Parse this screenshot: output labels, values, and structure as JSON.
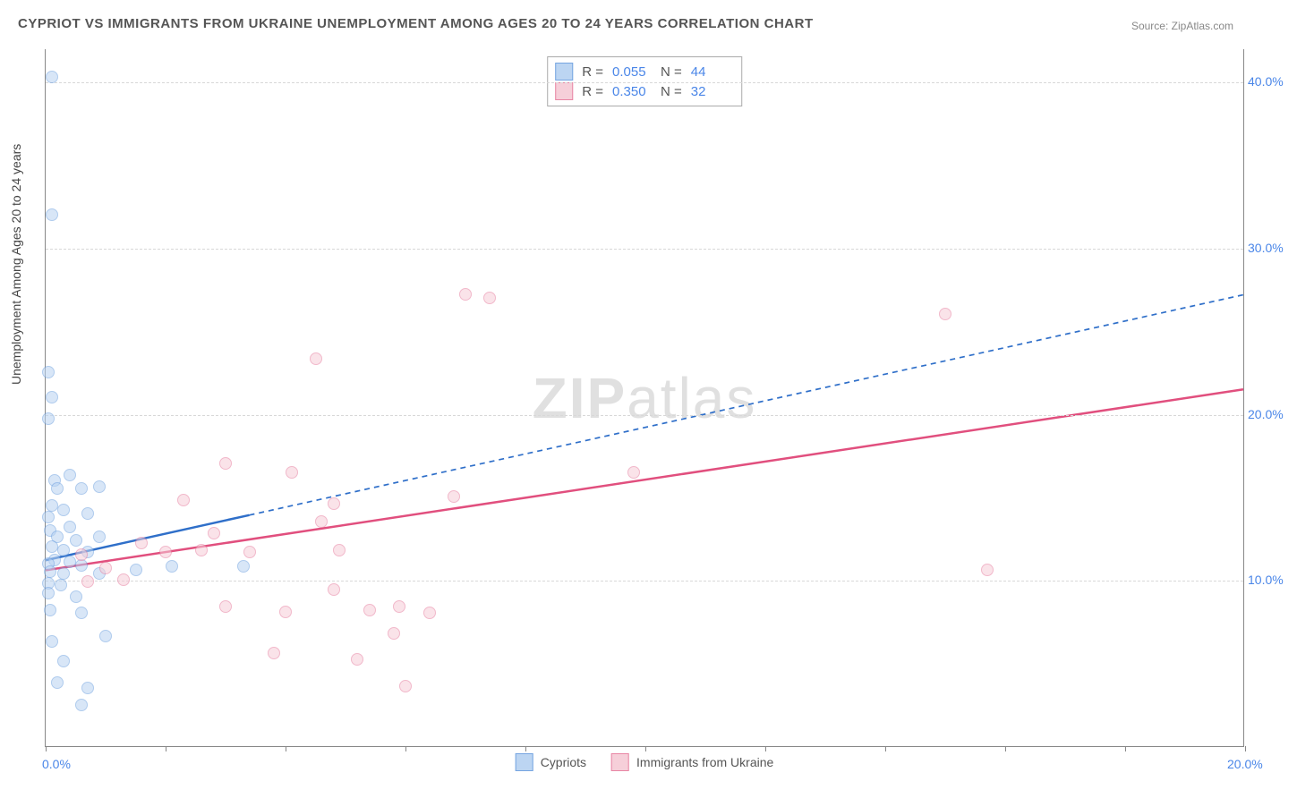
{
  "title": "CYPRIOT VS IMMIGRANTS FROM UKRAINE UNEMPLOYMENT AMONG AGES 20 TO 24 YEARS CORRELATION CHART",
  "source": "Source: ZipAtlas.com",
  "watermark_a": "ZIP",
  "watermark_b": "atlas",
  "chart": {
    "type": "scatter-with-regression",
    "ylabel": "Unemployment Among Ages 20 to 24 years",
    "xlim": [
      0,
      20
    ],
    "ylim": [
      0,
      42
    ],
    "xtick_positions": [
      0,
      2,
      4,
      6,
      8,
      10,
      12,
      14,
      16,
      18,
      20
    ],
    "xtick_labels": {
      "0": "0.0%",
      "20": "20.0%"
    },
    "ytick_positions": [
      10,
      20,
      30,
      40
    ],
    "ytick_labels": {
      "10": "10.0%",
      "20": "20.0%",
      "30": "30.0%",
      "40": "40.0%"
    },
    "grid_h_positions": [
      10,
      20,
      30,
      40
    ],
    "grid_color": "#d8d8d8",
    "background_color": "#ffffff",
    "border_color": "#888888",
    "tick_label_color": "#4a86e8",
    "axis_label_color": "#444444",
    "title_color": "#555555",
    "title_fontsize": 15,
    "label_fontsize": 14,
    "tick_fontsize": 14,
    "point_radius": 7,
    "point_opacity": 0.55,
    "series": [
      {
        "name": "Cypriots",
        "color_fill": "#b9d3f2",
        "color_stroke": "#6fa1e0",
        "r_value": "0.055",
        "n_value": "44",
        "trend": {
          "x1": 0,
          "y1": 11.2,
          "x2": 20,
          "y2": 27.2,
          "solid_until_x": 3.4,
          "stroke": "#2f6fc9",
          "width": 2.5,
          "dash": "6,5"
        },
        "points": [
          [
            0.1,
            40.3
          ],
          [
            0.1,
            32.0
          ],
          [
            0.05,
            22.5
          ],
          [
            0.1,
            21.0
          ],
          [
            0.05,
            19.7
          ],
          [
            0.15,
            16.0
          ],
          [
            0.4,
            16.3
          ],
          [
            0.2,
            15.5
          ],
          [
            0.6,
            15.5
          ],
          [
            0.9,
            15.6
          ],
          [
            0.1,
            14.5
          ],
          [
            0.05,
            13.8
          ],
          [
            0.3,
            14.2
          ],
          [
            0.7,
            14.0
          ],
          [
            0.08,
            13.0
          ],
          [
            0.4,
            13.2
          ],
          [
            0.2,
            12.6
          ],
          [
            0.5,
            12.4
          ],
          [
            0.9,
            12.6
          ],
          [
            0.1,
            12.0
          ],
          [
            0.3,
            11.8
          ],
          [
            0.7,
            11.7
          ],
          [
            0.15,
            11.2
          ],
          [
            0.05,
            11.0
          ],
          [
            0.4,
            11.1
          ],
          [
            0.6,
            10.9
          ],
          [
            0.08,
            10.5
          ],
          [
            0.3,
            10.4
          ],
          [
            0.9,
            10.4
          ],
          [
            1.5,
            10.6
          ],
          [
            2.1,
            10.8
          ],
          [
            3.3,
            10.8
          ],
          [
            0.05,
            9.8
          ],
          [
            0.25,
            9.7
          ],
          [
            0.05,
            9.2
          ],
          [
            0.5,
            9.0
          ],
          [
            0.08,
            8.2
          ],
          [
            0.6,
            8.0
          ],
          [
            0.1,
            6.3
          ],
          [
            1.0,
            6.6
          ],
          [
            0.3,
            5.1
          ],
          [
            0.2,
            3.8
          ],
          [
            0.7,
            3.5
          ],
          [
            0.6,
            2.5
          ]
        ]
      },
      {
        "name": "Immigrants from Ukraine",
        "color_fill": "#f6cdd8",
        "color_stroke": "#e77fa0",
        "r_value": "0.350",
        "n_value": "32",
        "trend": {
          "x1": 0,
          "y1": 10.6,
          "x2": 20,
          "y2": 21.5,
          "solid_until_x": 20,
          "stroke": "#e14f7e",
          "width": 2.5,
          "dash": ""
        },
        "points": [
          [
            7.0,
            27.2
          ],
          [
            7.4,
            27.0
          ],
          [
            15.0,
            26.0
          ],
          [
            4.5,
            23.3
          ],
          [
            3.0,
            17.0
          ],
          [
            4.1,
            16.5
          ],
          [
            9.8,
            16.5
          ],
          [
            2.3,
            14.8
          ],
          [
            4.8,
            14.6
          ],
          [
            6.8,
            15.0
          ],
          [
            4.6,
            13.5
          ],
          [
            2.8,
            12.8
          ],
          [
            1.6,
            12.2
          ],
          [
            2.0,
            11.7
          ],
          [
            2.6,
            11.8
          ],
          [
            3.4,
            11.7
          ],
          [
            4.9,
            11.8
          ],
          [
            0.6,
            11.5
          ],
          [
            1.0,
            10.7
          ],
          [
            15.7,
            10.6
          ],
          [
            0.7,
            9.9
          ],
          [
            1.3,
            10.0
          ],
          [
            4.8,
            9.4
          ],
          [
            3.0,
            8.4
          ],
          [
            4.0,
            8.1
          ],
          [
            5.4,
            8.2
          ],
          [
            5.9,
            8.4
          ],
          [
            6.4,
            8.0
          ],
          [
            5.8,
            6.8
          ],
          [
            3.8,
            5.6
          ],
          [
            5.2,
            5.2
          ],
          [
            6.0,
            3.6
          ]
        ]
      }
    ],
    "bottom_legend": [
      {
        "label": "Cypriots",
        "fill": "#b9d3f2",
        "stroke": "#6fa1e0"
      },
      {
        "label": "Immigrants from Ukraine",
        "fill": "#f6cdd8",
        "stroke": "#e77fa0"
      }
    ],
    "stats_legend": {
      "r_label": "R =",
      "n_label": "N ="
    }
  }
}
